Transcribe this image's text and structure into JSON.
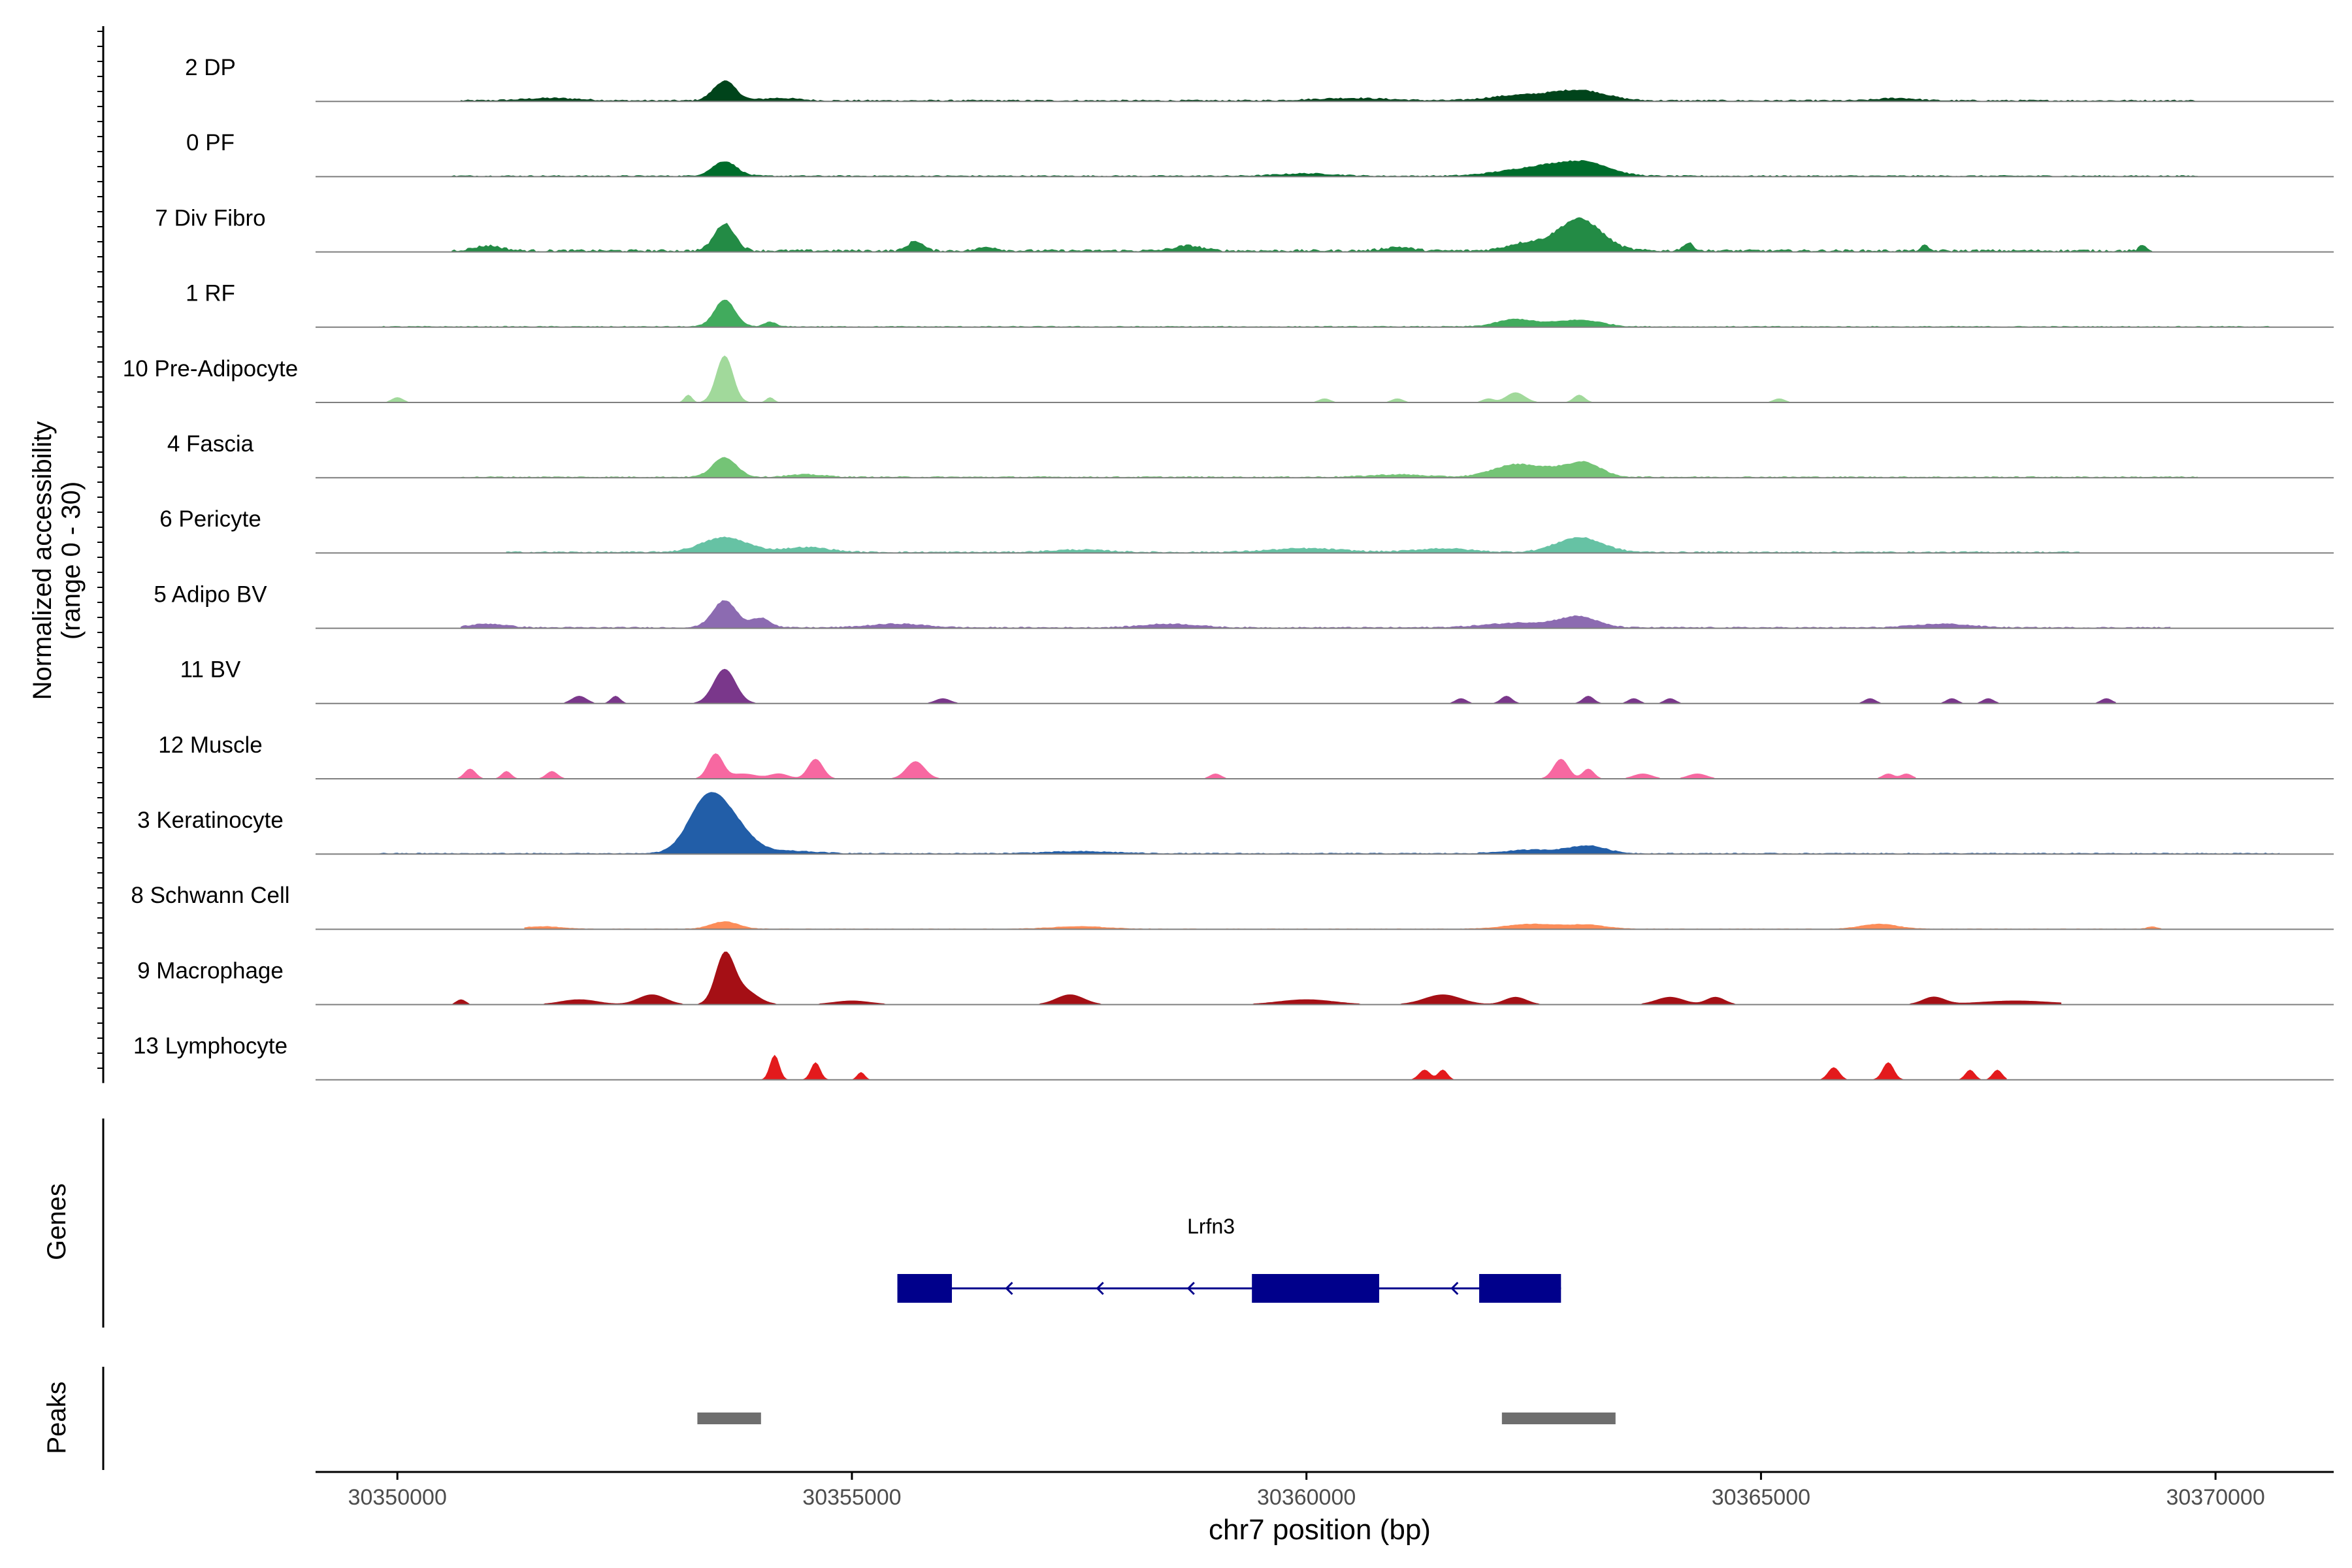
{
  "chart_data": {
    "type": "area",
    "ylabel_line1": "Normalized accessibility",
    "ylabel_line2": "(range 0 - 30)",
    "xlabel": "chr7 position (bp)",
    "xlim": [
      30349100,
      30371300
    ],
    "xticks": [
      30350000,
      30355000,
      30360000,
      30365000,
      30370000
    ],
    "xtick_labels": [
      "30350000",
      "30355000",
      "30360000",
      "30365000",
      "30370000"
    ],
    "ylim": [
      0,
      30
    ],
    "tracks": [
      {
        "name": "2 DP",
        "color": "#00441b",
        "peaks": [
          [
            30353600,
            8,
            120
          ],
          [
            30360500,
            1,
            400
          ],
          [
            30362300,
            2,
            300
          ],
          [
            30362800,
            2,
            250
          ],
          [
            30363100,
            3,
            250
          ],
          [
            30354200,
            1,
            200
          ],
          [
            30351700,
            1,
            300
          ],
          [
            30366500,
            1,
            200
          ]
        ],
        "base": 0.6,
        "start": 30350700,
        "end": 30369800
      },
      {
        "name": "0 PF",
        "color": "#006d2c",
        "peaks": [
          [
            30353600,
            6,
            130
          ],
          [
            30362300,
            2,
            300
          ],
          [
            30363100,
            5,
            250
          ],
          [
            30362700,
            3,
            250
          ],
          [
            30360000,
            1,
            300
          ]
        ],
        "base": 0.5,
        "start": 30350600,
        "end": 30369800
      },
      {
        "name": "7 Div Fibro",
        "color": "#238b45",
        "peaks": [
          [
            30353600,
            11,
            110
          ],
          [
            30363000,
            13,
            240
          ],
          [
            30362400,
            3,
            200
          ],
          [
            30355700,
            4,
            80
          ],
          [
            30351000,
            2,
            150
          ],
          [
            30356500,
            1.5,
            100
          ],
          [
            30358700,
            2,
            150
          ],
          [
            30361000,
            1.5,
            150
          ],
          [
            30364200,
            3,
            60
          ],
          [
            30366800,
            2,
            40
          ],
          [
            30369200,
            2,
            40
          ]
        ],
        "base": 1.0,
        "start": 30350600,
        "end": 30369300
      },
      {
        "name": "1 RF",
        "color": "#41ab5d",
        "peaks": [
          [
            30353600,
            11,
            110
          ],
          [
            30354100,
            2,
            60
          ],
          [
            30362300,
            3,
            200
          ],
          [
            30363100,
            2,
            200
          ],
          [
            30362800,
            1.5,
            200
          ]
        ],
        "base": 0.4,
        "start": 30349800,
        "end": 30370600
      },
      {
        "name": "10 Pre-Adipocyte",
        "color": "#a1d99b",
        "peaks": [
          [
            30353600,
            19,
            90
          ],
          [
            30353200,
            3,
            40
          ],
          [
            30354100,
            2,
            40
          ],
          [
            30362300,
            4,
            100
          ],
          [
            30363000,
            3,
            60
          ],
          [
            30350000,
            2,
            60
          ],
          [
            30360200,
            1.5,
            60
          ],
          [
            30361000,
            1.5,
            60
          ],
          [
            30362000,
            1.5,
            60
          ],
          [
            30365200,
            1.5,
            60
          ]
        ],
        "base": 0.0,
        "start": 30349800,
        "end": 30365500
      },
      {
        "name": "4 Fascia",
        "color": "#74c476",
        "peaks": [
          [
            30353600,
            8,
            130
          ],
          [
            30362300,
            5,
            250
          ],
          [
            30362900,
            4,
            250
          ],
          [
            30363100,
            3,
            150
          ],
          [
            30354500,
            1,
            200
          ],
          [
            30361000,
            1,
            300
          ]
        ],
        "base": 0.5,
        "start": 30350700,
        "end": 30369800
      },
      {
        "name": "6 Pericyte",
        "color": "#66c2a4",
        "peaks": [
          [
            30353600,
            6,
            250
          ],
          [
            30363000,
            6,
            250
          ],
          [
            30354500,
            2,
            250
          ],
          [
            30360000,
            1.5,
            400
          ],
          [
            30361500,
            1.5,
            300
          ],
          [
            30357500,
            1,
            300
          ]
        ],
        "base": 0.6,
        "start": 30351200,
        "end": 30368500
      },
      {
        "name": "5 Adipo BV",
        "color": "#8c6bb1",
        "peaks": [
          [
            30353600,
            11,
            130
          ],
          [
            30354000,
            4,
            100
          ],
          [
            30363000,
            4,
            200
          ],
          [
            30362400,
            2,
            400
          ],
          [
            30351000,
            1.5,
            200
          ],
          [
            30355500,
            1.5,
            300
          ],
          [
            30358500,
            1.5,
            300
          ],
          [
            30367000,
            1.5,
            300
          ]
        ],
        "base": 0.5,
        "start": 30350700,
        "end": 30369500
      },
      {
        "name": "11 BV",
        "color": "#7a378b",
        "peaks": [
          [
            30353600,
            14,
            120
          ],
          [
            30352000,
            3,
            80
          ],
          [
            30352400,
            3,
            50
          ],
          [
            30356000,
            2,
            80
          ],
          [
            30362200,
            3,
            60
          ],
          [
            30363100,
            3,
            60
          ],
          [
            30361700,
            2,
            60
          ],
          [
            30363600,
            2,
            60
          ],
          [
            30364000,
            2,
            60
          ],
          [
            30366200,
            2,
            60
          ],
          [
            30367100,
            2,
            60
          ],
          [
            30367500,
            2,
            60
          ],
          [
            30368800,
            2,
            60
          ]
        ],
        "base": 0.0,
        "start": 30351800,
        "end": 30368900
      },
      {
        "name": "12 Muscle",
        "color": "#f768a1",
        "peaks": [
          [
            30353500,
            10,
            80
          ],
          [
            30354600,
            8,
            80
          ],
          [
            30355700,
            7,
            100
          ],
          [
            30362800,
            8,
            80
          ],
          [
            30363100,
            4,
            60
          ],
          [
            30350800,
            4,
            60
          ],
          [
            30351200,
            3,
            50
          ],
          [
            30351700,
            3,
            60
          ],
          [
            30353800,
            2,
            150
          ],
          [
            30354200,
            2,
            100
          ],
          [
            30359000,
            2,
            60
          ],
          [
            30363700,
            2,
            100
          ],
          [
            30364300,
            2,
            100
          ],
          [
            30366400,
            2,
            60
          ],
          [
            30366600,
            2,
            60
          ]
        ],
        "base": 0.0,
        "start": 30350600,
        "end": 30366700
      },
      {
        "name": "3 Keratinocyte",
        "color": "#225ea8",
        "peaks": [
          [
            30353400,
            21,
            200
          ],
          [
            30353700,
            10,
            200
          ],
          [
            30363100,
            3,
            200
          ],
          [
            30362500,
            1.5,
            300
          ],
          [
            30354300,
            1,
            300
          ],
          [
            30357500,
            0.8,
            400
          ]
        ],
        "base": 0.4,
        "start": 30349800,
        "end": 30370700
      },
      {
        "name": "8 Schwann Cell",
        "color": "#fc8d59",
        "peaks": [
          [
            30353600,
            3,
            150
          ],
          [
            30362500,
            2,
            300
          ],
          [
            30363100,
            1.5,
            200
          ],
          [
            30366300,
            2,
            200
          ],
          [
            30357500,
            1,
            300
          ],
          [
            30351600,
            1,
            200
          ],
          [
            30369300,
            1,
            50
          ]
        ],
        "base": 0.2,
        "start": 30351400,
        "end": 30369400
      },
      {
        "name": "9 Macrophage",
        "color": "#a50f15",
        "peaks": [
          [
            30353600,
            19,
            100
          ],
          [
            30353800,
            6,
            150
          ],
          [
            30352800,
            4,
            150
          ],
          [
            30357400,
            4,
            150
          ],
          [
            30361500,
            4,
            200
          ],
          [
            30362300,
            3,
            120
          ],
          [
            30364000,
            3,
            150
          ],
          [
            30364500,
            3,
            100
          ],
          [
            30366900,
            3,
            120
          ],
          [
            30352000,
            2,
            200
          ],
          [
            30355000,
            1.5,
            200
          ],
          [
            30360000,
            2,
            300
          ],
          [
            30350700,
            2,
            50
          ],
          [
            30367800,
            1.5,
            400
          ]
        ],
        "base": 0.0,
        "start": 30350600,
        "end": 30368300
      },
      {
        "name": "13 Lymphocyte",
        "color": "#e31a1c",
        "peaks": [
          [
            30354150,
            10,
            50
          ],
          [
            30354600,
            7,
            50
          ],
          [
            30355100,
            3,
            40
          ],
          [
            30361300,
            4,
            60
          ],
          [
            30361500,
            4,
            50
          ],
          [
            30365800,
            5,
            60
          ],
          [
            30366400,
            7,
            60
          ],
          [
            30367300,
            4,
            50
          ],
          [
            30367600,
            4,
            50
          ]
        ],
        "base": 0.0,
        "start": 30354000,
        "end": 30367700
      }
    ],
    "genes_label": "Genes",
    "gene": {
      "name": "Lrfn3",
      "start": 30355500,
      "end": 30362800,
      "strand": "-",
      "exons": [
        [
          30355500,
          30356100
        ],
        [
          30359400,
          30360800
        ],
        [
          30361900,
          30362800
        ]
      ],
      "arrows": [
        30356700,
        30357700,
        30358700,
        30361600
      ],
      "color": "#00008b"
    },
    "peaks_label": "Peaks",
    "peak_regions": [
      [
        30353300,
        30354000
      ],
      [
        30362150,
        30363400
      ]
    ],
    "peak_region_color": "#6e6e6e"
  }
}
